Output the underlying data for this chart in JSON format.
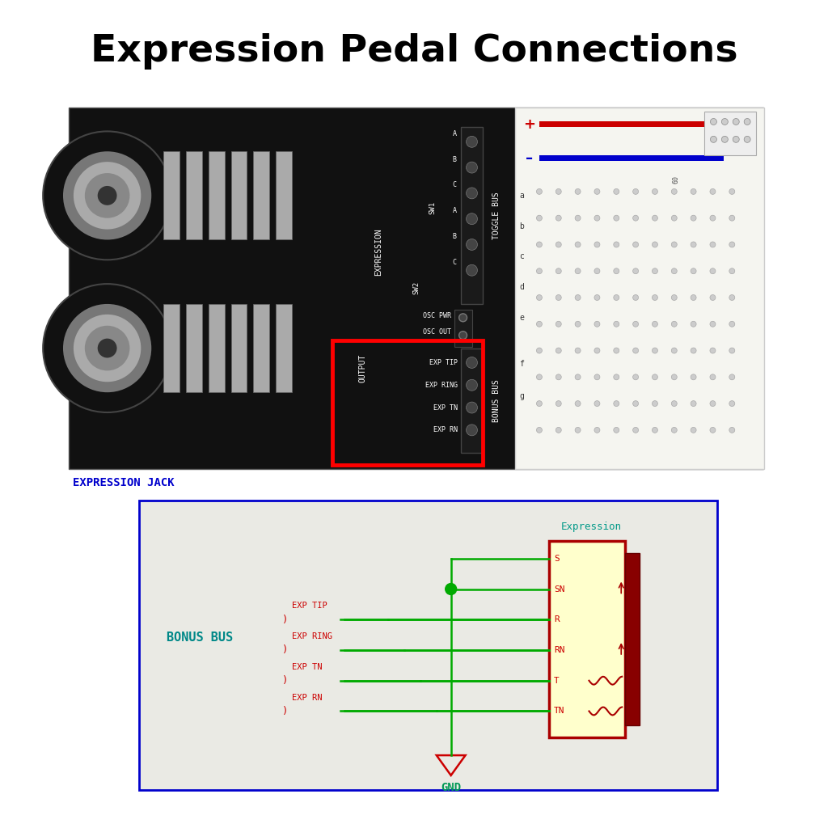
{
  "title": "Expression Pedal Connections",
  "title_fontsize": 34,
  "title_fontweight": "bold",
  "bg_color": "#ffffff",
  "expression_jack_label": "EXPRESSION JACK",
  "expression_jack_color": "#0000cc",
  "bonus_bus_label": "BONUS BUS",
  "bonus_bus_color": "#008888",
  "gnd_label": "GND",
  "gnd_color": "#009955",
  "expression_label": "Expression",
  "expression_label_color": "#009988",
  "bus_pins": [
    "EXP TIP",
    "EXP RING",
    "EXP TN",
    "EXP RN"
  ],
  "bus_pin_color": "#cc0000",
  "jack_pins": [
    "S",
    "SN",
    "R",
    "RN",
    "T",
    "TN"
  ],
  "jack_pin_color": "#cc0000",
  "wire_color": "#00aa00",
  "jack_fill": "#ffffcc",
  "jack_border": "#aa0000",
  "photo_bg": "#111111",
  "schematic_bg": "#eaeae4",
  "schematic_border": "#0000cc"
}
